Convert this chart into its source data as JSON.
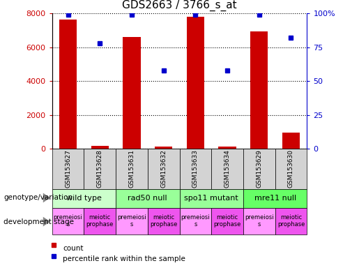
{
  "title": "GDS2663 / 3766_s_at",
  "samples": [
    "GSM153627",
    "GSM153628",
    "GSM153631",
    "GSM153632",
    "GSM153633",
    "GSM153634",
    "GSM153629",
    "GSM153630"
  ],
  "counts": [
    7650,
    180,
    6600,
    110,
    7800,
    110,
    6950,
    950
  ],
  "percentiles": [
    99,
    78,
    99,
    58,
    99,
    58,
    99,
    82
  ],
  "ylim_left": [
    0,
    8000
  ],
  "ylim_right": [
    0,
    100
  ],
  "yticks_left": [
    0,
    2000,
    4000,
    6000,
    8000
  ],
  "yticks_right": [
    0,
    25,
    50,
    75,
    100
  ],
  "yticklabels_right": [
    "0",
    "25",
    "50",
    "75",
    "100%"
  ],
  "bar_color": "#cc0000",
  "dot_color": "#0000cc",
  "genotype_groups": [
    {
      "label": "wild type",
      "start": 0,
      "end": 2,
      "color": "#ccffcc"
    },
    {
      "label": "rad50 null",
      "start": 2,
      "end": 4,
      "color": "#99ff99"
    },
    {
      "label": "spo11 mutant",
      "start": 4,
      "end": 6,
      "color": "#99ff99"
    },
    {
      "label": "mre11 null",
      "start": 6,
      "end": 8,
      "color": "#66ff66"
    }
  ],
  "dev_stages": [
    {
      "label": "premeiosi\ns",
      "color": "#ff99ff"
    },
    {
      "label": "meiotic\nprophase",
      "color": "#ee55ee"
    },
    {
      "label": "premeiosi\ns",
      "color": "#ff99ff"
    },
    {
      "label": "meiotic\nprophase",
      "color": "#ee55ee"
    },
    {
      "label": "premeiosi\ns",
      "color": "#ff99ff"
    },
    {
      "label": "meiotic\nprophase",
      "color": "#ee55ee"
    },
    {
      "label": "premeiosi\ns",
      "color": "#ff99ff"
    },
    {
      "label": "meiotic\nprophase",
      "color": "#ee55ee"
    }
  ],
  "background_color": "#ffffff",
  "title_fontsize": 11,
  "tick_fontsize": 8,
  "sample_fontsize": 6.5,
  "label_fontsize": 7.5,
  "dev_fontsize": 6.0,
  "geno_fontsize": 8.0
}
